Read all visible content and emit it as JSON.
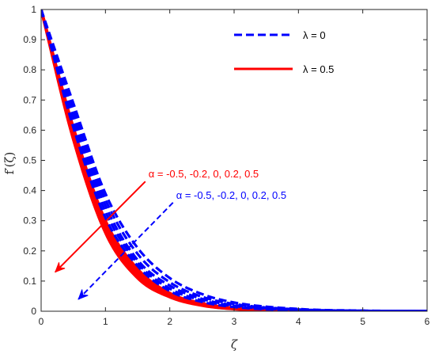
{
  "chart_data": {
    "type": "line",
    "xlabel": "ζ",
    "ylabel": "f′(ζ)",
    "xlim": [
      0,
      6
    ],
    "ylim": [
      0,
      1
    ],
    "x_ticks": [
      "0",
      "1",
      "2",
      "3",
      "4",
      "5",
      "6"
    ],
    "y_ticks": [
      "0",
      "0.1",
      "0.2",
      "0.3",
      "0.4",
      "0.5",
      "0.6",
      "0.7",
      "0.8",
      "0.9",
      "1"
    ],
    "grid": false,
    "legend_position": "top-right",
    "legend": [
      {
        "label": "λ = 0",
        "style": "dashed",
        "color": "#0000ff"
      },
      {
        "label": "λ = 0.5",
        "style": "solid",
        "color": "#ff0000"
      }
    ],
    "group_lambda_0": {
      "style": "dashed",
      "color": "#0000ff",
      "alpha": [
        -0.5,
        -0.2,
        0,
        0.2,
        0.5
      ],
      "x": [
        0,
        0.5,
        1,
        1.5,
        2,
        2.5,
        3,
        4,
        5,
        6
      ],
      "series": [
        {
          "values": [
            1,
            0.69,
            0.39,
            0.21,
            0.11,
            0.057,
            0.029,
            0.0075,
            0.002,
            0.0005
          ]
        },
        {
          "values": [
            1,
            0.67,
            0.37,
            0.19,
            0.096,
            0.048,
            0.024,
            0.006,
            0.0015,
            0.0004
          ]
        },
        {
          "values": [
            1,
            0.65,
            0.35,
            0.17,
            0.085,
            0.041,
            0.02,
            0.005,
            0.0012,
            0.0003
          ]
        },
        {
          "values": [
            1,
            0.63,
            0.33,
            0.16,
            0.075,
            0.036,
            0.017,
            0.004,
            0.001,
            0.0002
          ]
        },
        {
          "values": [
            1,
            0.61,
            0.31,
            0.15,
            0.067,
            0.031,
            0.014,
            0.003,
            0.0008,
            0.0002
          ]
        }
      ]
    },
    "group_lambda_05": {
      "style": "solid",
      "color": "#ff0000",
      "alpha": [
        -0.5,
        -0.2,
        0,
        0.2,
        0.5
      ],
      "x": [
        0,
        0.5,
        1,
        1.5,
        2,
        2.5,
        3,
        4,
        5,
        6
      ],
      "series": [
        {
          "values": [
            1,
            0.61,
            0.3,
            0.14,
            0.06,
            0.026,
            0.011,
            0.002,
            0.0005,
            0.0001
          ]
        },
        {
          "values": [
            1,
            0.6,
            0.29,
            0.13,
            0.056,
            0.024,
            0.01,
            0.002,
            0.0004,
            0.0001
          ]
        },
        {
          "values": [
            1,
            0.59,
            0.28,
            0.125,
            0.053,
            0.022,
            0.009,
            0.0015,
            0.0003,
            0.0001
          ]
        },
        {
          "values": [
            1,
            0.58,
            0.27,
            0.12,
            0.05,
            0.02,
            0.008,
            0.0013,
            0.0003,
            0.0001
          ]
        },
        {
          "values": [
            1,
            0.57,
            0.26,
            0.11,
            0.047,
            0.019,
            0.0075,
            0.0012,
            0.0002,
            0.0001
          ]
        }
      ]
    },
    "annotations": [
      {
        "text": "α = -0.5, -0.2, 0, 0.2, 0.5",
        "color": "#ff0000",
        "arrow_from": [
          1.62,
          0.43
        ],
        "arrow_to": [
          0.22,
          0.13
        ]
      },
      {
        "text": "α = -0.5, -0.2, 0, 0.2, 0.5",
        "color": "#0000ff",
        "arrow_from": [
          2.05,
          0.36
        ],
        "arrow_to": [
          0.58,
          0.04
        ]
      }
    ]
  }
}
